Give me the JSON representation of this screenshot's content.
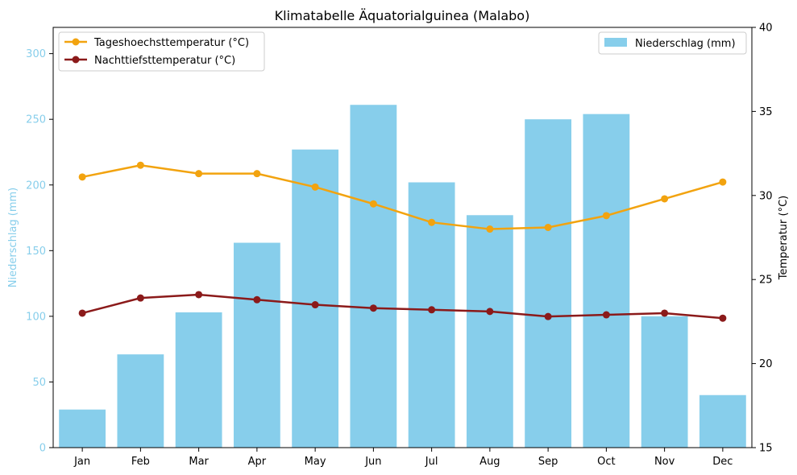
{
  "chart_data": {
    "type": "bar+line",
    "title": "Klimatabelle Äquatorialguinea (Malabo)",
    "categories": [
      "Jan",
      "Feb",
      "Mar",
      "Apr",
      "May",
      "Jun",
      "Jul",
      "Aug",
      "Sep",
      "Oct",
      "Nov",
      "Dec"
    ],
    "left_axis": {
      "label": "Niederschlag (mm)",
      "ylim": [
        0,
        320
      ],
      "ticks": [
        0,
        50,
        100,
        150,
        200,
        250,
        300
      ],
      "color": "#87ceeb"
    },
    "right_axis": {
      "label": "Temperatur (°C)",
      "ylim": [
        15,
        40
      ],
      "ticks": [
        15,
        20,
        25,
        30,
        35,
        40
      ],
      "color": "#000000"
    },
    "bar_series": {
      "name": "Niederschlag (mm)",
      "axis": "left",
      "color": "#87ceeb",
      "values": [
        29,
        71,
        103,
        156,
        227,
        261,
        202,
        177,
        250,
        254,
        100,
        40
      ]
    },
    "line_series": [
      {
        "name": "Tageshoechsttemperatur (°C)",
        "axis": "right",
        "color": "#f2a30f",
        "values": [
          31.1,
          31.8,
          31.3,
          31.3,
          30.5,
          29.5,
          28.4,
          28.0,
          28.1,
          28.8,
          29.8,
          30.8
        ]
      },
      {
        "name": "Nachttiefsttemperatur (°C)",
        "axis": "right",
        "color": "#8b1a1a",
        "values": [
          23.0,
          23.9,
          24.1,
          23.8,
          23.5,
          23.3,
          23.2,
          23.1,
          22.8,
          22.9,
          23.0,
          22.7
        ]
      }
    ],
    "legends": {
      "lines": "top-left",
      "bars": "top-right"
    },
    "grid": false
  }
}
